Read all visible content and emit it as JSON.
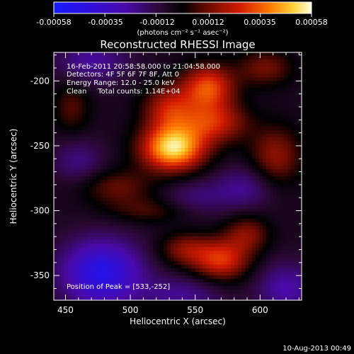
{
  "colorbar": {
    "tick_labels": [
      "-0.00058",
      "-0.00035",
      "-0.00012",
      "0.00012",
      "0.00035",
      "0.00058"
    ],
    "range": [
      -0.00058,
      0.00058
    ],
    "unit_label": "(photons cm⁻² s⁻¹ asec⁻²)"
  },
  "chart_data": {
    "type": "heatmap",
    "title": "Reconstructed RHESSI Image",
    "xlabel": "Heliocentric X (arcsec)",
    "ylabel": "Heliocentric Y (arcsec)",
    "xlim": [
      441,
      632
    ],
    "ylim": [
      -369,
      -178
    ],
    "x_ticks": [
      450,
      500,
      550,
      600
    ],
    "y_ticks": [
      -350,
      -300,
      -250,
      -200
    ],
    "info_lines": [
      "16-Feb-2011 20:58:58.000 to 21:04:58.000",
      "Detectors: 4F 5F 6F 7F 8F, Att 0",
      "Energy Range: 12.0 - 25.0 keV",
      "Clean     Total counts: 1.14E+04"
    ],
    "peak_label": "Position of Peak = [533,-252]",
    "peak": [
      533,
      -252
    ],
    "sources": [
      {
        "x": 533,
        "y": -252,
        "amp": 0.00058,
        "sx": 17,
        "sy": 12
      },
      {
        "x": 564,
        "y": -232,
        "amp": 0.0003,
        "sx": 18,
        "sy": 11
      },
      {
        "x": 530,
        "y": -222,
        "amp": 0.00028,
        "sx": 14,
        "sy": 13
      },
      {
        "x": 560,
        "y": -205,
        "amp": 0.00038,
        "sx": 14,
        "sy": 12
      },
      {
        "x": 604,
        "y": -190,
        "amp": 0.00018,
        "sx": 15,
        "sy": 10
      },
      {
        "x": 612,
        "y": -258,
        "amp": 0.00022,
        "sx": 14,
        "sy": 16
      },
      {
        "x": 490,
        "y": -282,
        "amp": 0.00016,
        "sx": 20,
        "sy": 10
      },
      {
        "x": 570,
        "y": -338,
        "amp": 0.00034,
        "sx": 15,
        "sy": 11
      },
      {
        "x": 542,
        "y": -330,
        "amp": 0.0002,
        "sx": 14,
        "sy": 9
      },
      {
        "x": 590,
        "y": -318,
        "amp": 0.0002,
        "sx": 12,
        "sy": 10
      },
      {
        "x": 515,
        "y": -300,
        "amp": 0.00012,
        "sx": 22,
        "sy": 7
      },
      {
        "x": 455,
        "y": -220,
        "amp": 0.00014,
        "sx": 10,
        "sy": 14
      },
      {
        "x": 470,
        "y": -185,
        "amp": -0.00018,
        "sx": 20,
        "sy": 12
      },
      {
        "x": 588,
        "y": -282,
        "amp": -0.00016,
        "sx": 16,
        "sy": 12
      },
      {
        "x": 550,
        "y": -290,
        "amp": -0.00012,
        "sx": 18,
        "sy": 10
      },
      {
        "x": 478,
        "y": -348,
        "amp": -0.0004,
        "sx": 22,
        "sy": 18
      },
      {
        "x": 620,
        "y": -360,
        "amp": -0.0002,
        "sx": 16,
        "sy": 14
      },
      {
        "x": 460,
        "y": -262,
        "amp": -0.00014,
        "sx": 14,
        "sy": 12
      },
      {
        "x": 540,
        "y": -365,
        "amp": -0.00016,
        "sx": 22,
        "sy": 10
      }
    ]
  },
  "footer": {
    "timestamp": "10-Aug-2013 00:49"
  }
}
